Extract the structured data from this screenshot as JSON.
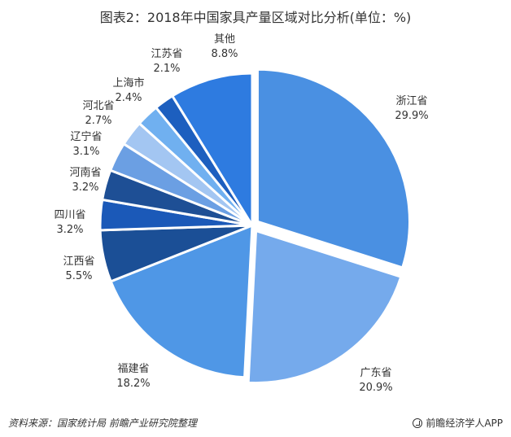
{
  "chart_data": {
    "type": "pie",
    "title": "图表2：2018年中国家具产量区域对比分析(单位：%)",
    "unit": "%",
    "categories": [
      "浙江省",
      "广东省",
      "福建省",
      "江西省",
      "四川省",
      "河南省",
      "辽宁省",
      "河北省",
      "上海市",
      "江苏省",
      "其他"
    ],
    "values": [
      29.9,
      20.9,
      18.2,
      5.5,
      3.2,
      3.2,
      3.1,
      2.7,
      2.4,
      2.1,
      8.8
    ],
    "value_labels": [
      "29.9%",
      "20.9%",
      "18.2%",
      "5.5%",
      "3.2%",
      "3.2%",
      "3.1%",
      "2.7%",
      "2.4%",
      "2.1%",
      "8.8%"
    ],
    "colors": [
      "#4a90e2",
      "#75aaec",
      "#4f97e6",
      "#1b4f96",
      "#1b59b8",
      "#1e4f95",
      "#6b9fe3",
      "#a3c6f2",
      "#70b0f0",
      "#1d5fbf",
      "#2e7be0"
    ],
    "legend": "none",
    "start_angle": "12 o'clock, clockwise"
  },
  "footer": {
    "source": "资料来源：国家统计局 前瞻产业研究院整理",
    "brand": "前瞻经济学人APP"
  }
}
